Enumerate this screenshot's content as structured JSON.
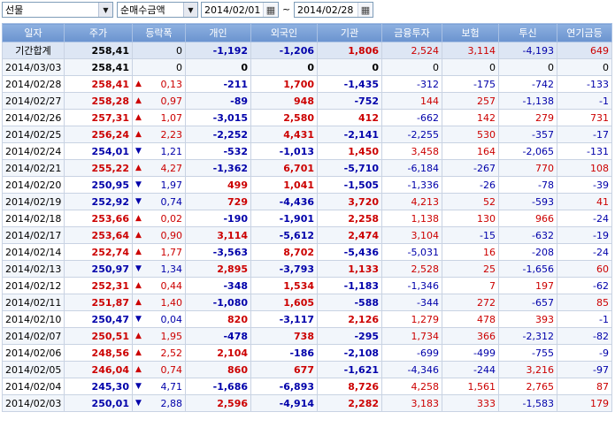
{
  "toolbar": {
    "market_select": "선물",
    "type_select": "순매수금액",
    "date_from": "2014/02/01",
    "date_sep": "~",
    "date_to": "2014/02/28"
  },
  "table": {
    "headers": [
      "일자",
      "주가",
      "등락폭",
      "개인",
      "외국인",
      "기관",
      "금융투자",
      "보험",
      "투신",
      "연기금등"
    ],
    "summary": {
      "date": "기간합계",
      "price": "258,41",
      "change": "0",
      "dir": "",
      "indiv": "-1,192",
      "foreign": "-1,206",
      "inst": "1,806",
      "fin": "2,524",
      "ins": "3,114",
      "trust": "-4,193",
      "pension": "649"
    },
    "rows": [
      {
        "date": "2014/03/03",
        "price": "258,41",
        "dir": "",
        "change": "0",
        "indiv": "0",
        "foreign": "0",
        "inst": "0",
        "fin": "0",
        "ins": "0",
        "trust": "0",
        "pension": "0"
      },
      {
        "date": "2014/02/28",
        "price": "258,41",
        "dir": "up",
        "change": "0,13",
        "indiv": "-211",
        "foreign": "1,700",
        "inst": "-1,435",
        "fin": "-312",
        "ins": "-175",
        "trust": "-742",
        "pension": "-133"
      },
      {
        "date": "2014/02/27",
        "price": "258,28",
        "dir": "up",
        "change": "0,97",
        "indiv": "-89",
        "foreign": "948",
        "inst": "-752",
        "fin": "144",
        "ins": "257",
        "trust": "-1,138",
        "pension": "-1"
      },
      {
        "date": "2014/02/26",
        "price": "257,31",
        "dir": "up",
        "change": "1,07",
        "indiv": "-3,015",
        "foreign": "2,580",
        "inst": "412",
        "fin": "-662",
        "ins": "142",
        "trust": "279",
        "pension": "731"
      },
      {
        "date": "2014/02/25",
        "price": "256,24",
        "dir": "up",
        "change": "2,23",
        "indiv": "-2,252",
        "foreign": "4,431",
        "inst": "-2,141",
        "fin": "-2,255",
        "ins": "530",
        "trust": "-357",
        "pension": "-17"
      },
      {
        "date": "2014/02/24",
        "price": "254,01",
        "dir": "down",
        "change": "1,21",
        "indiv": "-532",
        "foreign": "-1,013",
        "inst": "1,450",
        "fin": "3,458",
        "ins": "164",
        "trust": "-2,065",
        "pension": "-131"
      },
      {
        "date": "2014/02/21",
        "price": "255,22",
        "dir": "up",
        "change": "4,27",
        "indiv": "-1,362",
        "foreign": "6,701",
        "inst": "-5,710",
        "fin": "-6,184",
        "ins": "-267",
        "trust": "770",
        "pension": "108"
      },
      {
        "date": "2014/02/20",
        "price": "250,95",
        "dir": "down",
        "change": "1,97",
        "indiv": "499",
        "foreign": "1,041",
        "inst": "-1,505",
        "fin": "-1,336",
        "ins": "-26",
        "trust": "-78",
        "pension": "-39"
      },
      {
        "date": "2014/02/19",
        "price": "252,92",
        "dir": "down",
        "change": "0,74",
        "indiv": "729",
        "foreign": "-4,436",
        "inst": "3,720",
        "fin": "4,213",
        "ins": "52",
        "trust": "-593",
        "pension": "41"
      },
      {
        "date": "2014/02/18",
        "price": "253,66",
        "dir": "up",
        "change": "0,02",
        "indiv": "-190",
        "foreign": "-1,901",
        "inst": "2,258",
        "fin": "1,138",
        "ins": "130",
        "trust": "966",
        "pension": "-24"
      },
      {
        "date": "2014/02/17",
        "price": "253,64",
        "dir": "up",
        "change": "0,90",
        "indiv": "3,114",
        "foreign": "-5,612",
        "inst": "2,474",
        "fin": "3,104",
        "ins": "-15",
        "trust": "-632",
        "pension": "-19"
      },
      {
        "date": "2014/02/14",
        "price": "252,74",
        "dir": "up",
        "change": "1,77",
        "indiv": "-3,563",
        "foreign": "8,702",
        "inst": "-5,436",
        "fin": "-5,031",
        "ins": "16",
        "trust": "-208",
        "pension": "-24"
      },
      {
        "date": "2014/02/13",
        "price": "250,97",
        "dir": "down",
        "change": "1,34",
        "indiv": "2,895",
        "foreign": "-3,793",
        "inst": "1,133",
        "fin": "2,528",
        "ins": "25",
        "trust": "-1,656",
        "pension": "60"
      },
      {
        "date": "2014/02/12",
        "price": "252,31",
        "dir": "up",
        "change": "0,44",
        "indiv": "-348",
        "foreign": "1,534",
        "inst": "-1,183",
        "fin": "-1,346",
        "ins": "7",
        "trust": "197",
        "pension": "-62"
      },
      {
        "date": "2014/02/11",
        "price": "251,87",
        "dir": "up",
        "change": "1,40",
        "indiv": "-1,080",
        "foreign": "1,605",
        "inst": "-588",
        "fin": "-344",
        "ins": "272",
        "trust": "-657",
        "pension": "85"
      },
      {
        "date": "2014/02/10",
        "price": "250,47",
        "dir": "down",
        "change": "0,04",
        "indiv": "820",
        "foreign": "-3,117",
        "inst": "2,126",
        "fin": "1,279",
        "ins": "478",
        "trust": "393",
        "pension": "-1"
      },
      {
        "date": "2014/02/07",
        "price": "250,51",
        "dir": "up",
        "change": "1,95",
        "indiv": "-478",
        "foreign": "738",
        "inst": "-295",
        "fin": "1,734",
        "ins": "366",
        "trust": "-2,312",
        "pension": "-82"
      },
      {
        "date": "2014/02/06",
        "price": "248,56",
        "dir": "up",
        "change": "2,52",
        "indiv": "2,104",
        "foreign": "-186",
        "inst": "-2,108",
        "fin": "-699",
        "ins": "-499",
        "trust": "-755",
        "pension": "-9"
      },
      {
        "date": "2014/02/05",
        "price": "246,04",
        "dir": "up",
        "change": "0,74",
        "indiv": "860",
        "foreign": "677",
        "inst": "-1,621",
        "fin": "-4,346",
        "ins": "-244",
        "trust": "3,216",
        "pension": "-97"
      },
      {
        "date": "2014/02/04",
        "price": "245,30",
        "dir": "down",
        "change": "4,71",
        "indiv": "-1,686",
        "foreign": "-6,893",
        "inst": "8,726",
        "fin": "4,258",
        "ins": "1,561",
        "trust": "2,765",
        "pension": "87"
      },
      {
        "date": "2014/02/03",
        "price": "250,01",
        "dir": "down",
        "change": "2,88",
        "indiv": "2,596",
        "foreign": "-4,914",
        "inst": "2,282",
        "fin": "3,183",
        "ins": "333",
        "trust": "-1,583",
        "pension": "179"
      }
    ]
  },
  "colors": {
    "up": "#cc0000",
    "down": "#0000aa",
    "header": "#7aa0d6"
  },
  "icons": {
    "up": "triangle-up-icon",
    "down": "triangle-down-icon",
    "calendar": "calendar-icon",
    "dropdown": "chevron-down-icon"
  }
}
